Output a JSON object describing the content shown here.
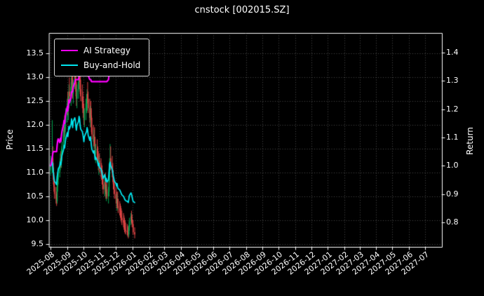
{
  "title": "cnstock [002015.SZ]",
  "legend": {
    "items": [
      {
        "label": "AI Strategy",
        "color": "#ff00ff"
      },
      {
        "label": "Buy-and-Hold",
        "color": "#00e5ee"
      }
    ]
  },
  "axes": {
    "left_label": "Price",
    "right_label": "Return"
  },
  "colors": {
    "background": "#000000",
    "text": "#ffffff",
    "spine": "#ffffff",
    "grid": "#777777",
    "up": "#00a651",
    "down": "#e04545",
    "ai": "#ff00ff",
    "bh": "#00e5ee"
  },
  "chart_data": {
    "type": "candlestick",
    "title": "cnstock [002015.SZ]",
    "xlabel": "",
    "ylabel_left": "Price",
    "ylabel_right": "Return",
    "grid": "dotted",
    "legend_position": "upper-left",
    "price_ylim": [
      9.44,
      13.93
    ],
    "return_ylim": [
      0.713,
      1.47
    ],
    "x_domain_days": [
      -3,
      731
    ],
    "price_ticks": [
      {
        "v": 9.5,
        "label": "9.5"
      },
      {
        "v": 10.0,
        "label": "10.0"
      },
      {
        "v": 10.5,
        "label": "10.5"
      },
      {
        "v": 11.0,
        "label": "11.0"
      },
      {
        "v": 11.5,
        "label": "11.5"
      },
      {
        "v": 12.0,
        "label": "12.0"
      },
      {
        "v": 12.5,
        "label": "12.5"
      },
      {
        "v": 13.0,
        "label": "13.0"
      },
      {
        "v": 13.5,
        "label": "13.5"
      }
    ],
    "return_ticks": [
      {
        "v": 0.8,
        "label": "0.8"
      },
      {
        "v": 0.9,
        "label": "0.9"
      },
      {
        "v": 1.0,
        "label": "1.0"
      },
      {
        "v": 1.1,
        "label": "1.1"
      },
      {
        "v": 1.2,
        "label": "1.2"
      },
      {
        "v": 1.3,
        "label": "1.3"
      },
      {
        "v": 1.4,
        "label": "1.4"
      }
    ],
    "x_ticks": [
      {
        "day": 0,
        "label": "2025-08"
      },
      {
        "day": 31,
        "label": "2025-09"
      },
      {
        "day": 61,
        "label": "2025-10"
      },
      {
        "day": 92,
        "label": "2025-11"
      },
      {
        "day": 122,
        "label": "2025-12"
      },
      {
        "day": 153,
        "label": "2026-01"
      },
      {
        "day": 184,
        "label": "2026-02"
      },
      {
        "day": 212,
        "label": "2026-03"
      },
      {
        "day": 243,
        "label": "2026-04"
      },
      {
        "day": 273,
        "label": "2026-05"
      },
      {
        "day": 304,
        "label": "2026-06"
      },
      {
        "day": 334,
        "label": "2026-07"
      },
      {
        "day": 365,
        "label": "2026-08"
      },
      {
        "day": 396,
        "label": "2026-09"
      },
      {
        "day": 426,
        "label": "2026-10"
      },
      {
        "day": 457,
        "label": "2026-11"
      },
      {
        "day": 487,
        "label": "2026-12"
      },
      {
        "day": 518,
        "label": "2027-01"
      },
      {
        "day": 549,
        "label": "2027-02"
      },
      {
        "day": 577,
        "label": "2027-03"
      },
      {
        "day": 608,
        "label": "2027-04"
      },
      {
        "day": 638,
        "label": "2027-05"
      },
      {
        "day": 669,
        "label": "2027-06"
      },
      {
        "day": 699,
        "label": "2027-07"
      }
    ],
    "series_names": [
      "AI Strategy",
      "Buy-and-Hold"
    ],
    "rows_format": [
      "day",
      "open",
      "high",
      "low",
      "close",
      "buy_hold_return",
      "ai_strategy_return"
    ],
    "rows": [
      [
        0,
        11.05,
        11.35,
        10.95,
        11.15,
        1.0,
        1.0
      ],
      [
        3,
        11.15,
        12.1,
        11.0,
        11.3,
        1.013,
        1.03
      ],
      [
        4,
        11.3,
        11.55,
        11.05,
        11.1,
        0.996,
        1.045
      ],
      [
        5,
        11.1,
        11.2,
        10.75,
        10.85,
        0.973,
        1.05
      ],
      [
        6,
        10.85,
        11.0,
        10.6,
        10.7,
        0.96,
        1.05
      ],
      [
        7,
        10.7,
        10.85,
        10.45,
        10.55,
        0.946,
        1.05
      ],
      [
        10,
        10.55,
        10.7,
        10.35,
        10.45,
        0.937,
        1.05
      ],
      [
        11,
        10.45,
        10.6,
        10.3,
        10.4,
        0.933,
        1.05
      ],
      [
        12,
        10.4,
        10.75,
        10.35,
        10.7,
        0.96,
        1.072
      ],
      [
        13,
        10.7,
        10.95,
        10.6,
        10.85,
        0.973,
        1.088
      ],
      [
        14,
        10.85,
        11.1,
        10.75,
        11.0,
        0.987,
        1.095
      ],
      [
        17,
        11.0,
        11.25,
        10.9,
        11.15,
        1.0,
        1.082
      ],
      [
        18,
        11.15,
        11.4,
        11.05,
        11.3,
        1.013,
        1.097
      ],
      [
        19,
        11.3,
        11.45,
        11.1,
        11.2,
        1.004,
        1.087
      ],
      [
        20,
        11.2,
        11.5,
        11.1,
        11.4,
        1.022,
        1.107
      ],
      [
        21,
        11.4,
        11.65,
        11.25,
        11.55,
        1.036,
        1.121
      ],
      [
        24,
        11.55,
        11.9,
        11.45,
        11.8,
        1.058,
        1.146
      ],
      [
        25,
        11.8,
        12.1,
        11.65,
        11.95,
        1.072,
        1.16
      ],
      [
        26,
        11.95,
        12.2,
        11.75,
        11.85,
        1.063,
        1.15
      ],
      [
        27,
        11.85,
        12.15,
        11.7,
        12.05,
        1.081,
        1.17
      ],
      [
        28,
        12.05,
        12.35,
        11.9,
        12.2,
        1.094,
        1.184
      ],
      [
        31,
        12.2,
        12.55,
        12.05,
        12.45,
        1.117,
        1.209
      ],
      [
        32,
        12.45,
        12.7,
        12.2,
        12.3,
        1.103,
        1.194
      ],
      [
        33,
        12.3,
        12.6,
        12.1,
        12.5,
        1.121,
        1.213
      ],
      [
        34,
        12.5,
        12.85,
        12.35,
        12.7,
        1.139,
        1.233
      ],
      [
        35,
        12.7,
        13.0,
        12.5,
        12.6,
        1.13,
        1.223
      ],
      [
        38,
        12.6,
        12.9,
        12.4,
        12.8,
        1.148,
        1.242
      ],
      [
        39,
        12.8,
        13.15,
        12.65,
        13.0,
        1.166,
        1.262
      ],
      [
        40,
        13.0,
        13.25,
        12.7,
        12.85,
        1.152,
        1.262
      ],
      [
        41,
        12.85,
        13.1,
        12.55,
        12.65,
        1.135,
        1.262
      ],
      [
        42,
        12.65,
        12.95,
        12.45,
        12.9,
        1.157,
        1.278
      ],
      [
        45,
        12.9,
        13.2,
        12.75,
        13.05,
        1.17,
        1.295
      ],
      [
        46,
        13.05,
        13.3,
        12.85,
        12.95,
        1.161,
        1.305
      ],
      [
        47,
        12.95,
        13.1,
        12.6,
        12.7,
        1.139,
        1.305
      ],
      [
        48,
        12.7,
        12.9,
        12.4,
        12.55,
        1.126,
        1.305
      ],
      [
        49,
        12.55,
        12.85,
        12.35,
        12.75,
        1.143,
        1.305
      ],
      [
        52,
        12.75,
        13.05,
        12.55,
        12.9,
        1.157,
        1.305
      ],
      [
        53,
        12.9,
        13.2,
        12.7,
        13.1,
        1.175,
        1.32
      ],
      [
        54,
        13.1,
        13.3,
        12.9,
        13.0,
        1.166,
        1.32
      ],
      [
        55,
        13.0,
        13.15,
        12.65,
        12.75,
        1.143,
        1.32
      ],
      [
        56,
        12.75,
        12.95,
        12.5,
        12.6,
        1.13,
        1.32
      ],
      [
        59,
        12.6,
        12.85,
        12.35,
        12.5,
        1.121,
        1.32
      ],
      [
        60,
        12.5,
        12.7,
        12.25,
        12.4,
        1.112,
        1.32
      ],
      [
        61,
        12.4,
        12.6,
        12.15,
        12.25,
        1.099,
        1.32
      ],
      [
        62,
        12.25,
        12.45,
        12.0,
        12.1,
        1.085,
        1.32
      ],
      [
        63,
        12.1,
        12.35,
        11.95,
        12.3,
        1.103,
        1.32
      ],
      [
        66,
        12.3,
        12.55,
        12.1,
        12.45,
        1.117,
        1.32
      ],
      [
        67,
        12.45,
        12.65,
        12.25,
        12.5,
        1.121,
        1.32
      ],
      [
        68,
        12.5,
        12.75,
        12.3,
        12.65,
        1.135,
        1.32
      ],
      [
        69,
        12.65,
        12.9,
        12.45,
        12.55,
        1.126,
        1.32
      ],
      [
        70,
        12.55,
        12.7,
        12.25,
        12.35,
        1.108,
        1.32
      ],
      [
        73,
        12.35,
        12.55,
        12.05,
        12.15,
        1.09,
        1.305
      ],
      [
        74,
        12.15,
        12.4,
        11.95,
        12.3,
        1.103,
        1.305
      ],
      [
        75,
        12.3,
        12.5,
        12.1,
        12.2,
        1.094,
        1.305
      ],
      [
        76,
        12.2,
        12.35,
        11.85,
        11.95,
        1.072,
        1.298
      ],
      [
        77,
        11.95,
        12.15,
        11.7,
        11.8,
        1.058,
        1.298
      ],
      [
        80,
        11.8,
        12.0,
        11.55,
        11.65,
        1.045,
        1.298
      ],
      [
        81,
        11.65,
        11.9,
        11.5,
        11.75,
        1.054,
        1.298
      ],
      [
        82,
        11.75,
        11.95,
        11.55,
        11.6,
        1.04,
        1.298
      ],
      [
        83,
        11.6,
        11.75,
        11.3,
        11.4,
        1.022,
        1.298
      ],
      [
        84,
        11.4,
        11.6,
        11.2,
        11.5,
        1.031,
        1.298
      ],
      [
        87,
        11.5,
        11.7,
        11.25,
        11.35,
        1.018,
        1.298
      ],
      [
        88,
        11.35,
        11.55,
        11.15,
        11.25,
        1.009,
        1.298
      ],
      [
        89,
        11.25,
        11.45,
        11.05,
        11.15,
        1.0,
        1.298
      ],
      [
        90,
        11.15,
        11.35,
        10.95,
        11.25,
        1.009,
        1.298
      ],
      [
        91,
        11.25,
        11.4,
        11.0,
        11.1,
        0.996,
        1.298
      ],
      [
        94,
        11.1,
        11.3,
        10.9,
        11.0,
        0.987,
        1.298
      ],
      [
        95,
        11.0,
        11.2,
        10.85,
        10.95,
        0.982,
        1.298
      ],
      [
        96,
        10.95,
        11.15,
        10.75,
        10.85,
        0.973,
        1.298
      ],
      [
        97,
        10.85,
        11.05,
        10.65,
        10.75,
        0.964,
        1.298
      ],
      [
        98,
        10.75,
        10.95,
        10.55,
        10.65,
        0.955,
        1.298
      ],
      [
        101,
        10.65,
        10.9,
        10.5,
        10.8,
        0.969,
        1.298
      ],
      [
        102,
        10.8,
        11.0,
        10.6,
        10.7,
        0.96,
        1.298
      ],
      [
        103,
        10.7,
        10.85,
        10.45,
        10.55,
        0.946,
        1.298
      ],
      [
        104,
        10.55,
        10.75,
        10.4,
        10.65,
        0.955,
        1.298
      ],
      [
        105,
        10.65,
        10.8,
        10.45,
        10.5,
        0.942,
        1.298
      ],
      [
        108,
        10.5,
        10.7,
        10.35,
        10.6,
        0.951,
        1.305
      ],
      [
        109,
        10.6,
        11.0,
        10.5,
        10.9,
        0.978,
        1.322
      ],
      [
        110,
        10.9,
        11.3,
        10.8,
        11.2,
        1.004,
        1.34
      ],
      [
        111,
        11.2,
        11.6,
        11.05,
        11.3,
        1.013,
        1.352
      ],
      [
        112,
        11.3,
        11.55,
        11.05,
        11.15,
        1.0,
        1.338
      ],
      [
        115,
        11.15,
        11.35,
        10.9,
        11.0,
        0.987,
        1.338
      ],
      [
        116,
        11.0,
        11.2,
        10.8,
        10.9,
        0.978,
        1.338
      ],
      [
        117,
        10.9,
        11.05,
        10.65,
        10.75,
        0.964,
        1.338
      ],
      [
        118,
        10.75,
        10.9,
        10.55,
        10.65,
        0.955,
        1.338
      ],
      [
        119,
        10.65,
        10.8,
        10.45,
        10.55,
        0.946,
        1.338
      ],
      [
        122,
        10.55,
        10.7,
        10.35,
        10.45,
        0.937,
        1.338
      ],
      [
        123,
        10.45,
        10.6,
        10.25,
        10.35,
        0.928,
        null
      ],
      [
        124,
        10.35,
        10.55,
        10.2,
        10.45,
        0.937,
        null
      ],
      [
        125,
        10.45,
        10.6,
        10.25,
        10.3,
        0.924,
        null
      ],
      [
        126,
        10.3,
        10.45,
        10.15,
        10.25,
        0.919,
        null
      ],
      [
        129,
        10.25,
        10.4,
        10.1,
        10.2,
        0.915,
        null
      ],
      [
        130,
        10.2,
        10.35,
        10.05,
        10.15,
        0.91,
        null
      ],
      [
        131,
        10.15,
        10.3,
        10.0,
        10.1,
        0.906,
        null
      ],
      [
        132,
        10.1,
        10.25,
        9.95,
        10.05,
        0.901,
        null
      ],
      [
        133,
        10.05,
        10.2,
        9.9,
        10.0,
        0.897,
        null
      ],
      [
        136,
        10.0,
        10.15,
        9.85,
        9.95,
        0.892,
        null
      ],
      [
        137,
        9.95,
        10.1,
        9.8,
        9.9,
        0.888,
        null
      ],
      [
        138,
        9.9,
        10.05,
        9.75,
        9.85,
        0.883,
        null
      ],
      [
        139,
        9.85,
        10.0,
        9.72,
        9.8,
        0.879,
        null
      ],
      [
        140,
        9.8,
        9.95,
        9.7,
        9.78,
        0.877,
        null
      ],
      [
        143,
        9.78,
        9.92,
        9.68,
        9.75,
        0.874,
        null
      ],
      [
        144,
        9.75,
        9.88,
        9.65,
        9.72,
        0.872,
        null
      ],
      [
        145,
        9.72,
        9.85,
        9.62,
        9.7,
        0.87,
        null
      ],
      [
        146,
        9.7,
        9.9,
        9.65,
        9.85,
        0.883,
        null
      ],
      [
        147,
        9.85,
        10.05,
        9.78,
        9.98,
        0.895,
        null
      ],
      [
        150,
        9.98,
        10.15,
        9.9,
        10.08,
        0.904,
        null
      ],
      [
        151,
        10.08,
        10.2,
        9.95,
        10.02,
        0.899,
        null
      ],
      [
        152,
        10.02,
        10.12,
        9.85,
        9.92,
        0.89,
        null
      ],
      [
        154,
        9.92,
        10.0,
        9.7,
        9.75,
        0.874,
        null
      ],
      [
        157,
        9.75,
        9.85,
        9.62,
        9.7,
        0.87,
        null
      ]
    ]
  }
}
